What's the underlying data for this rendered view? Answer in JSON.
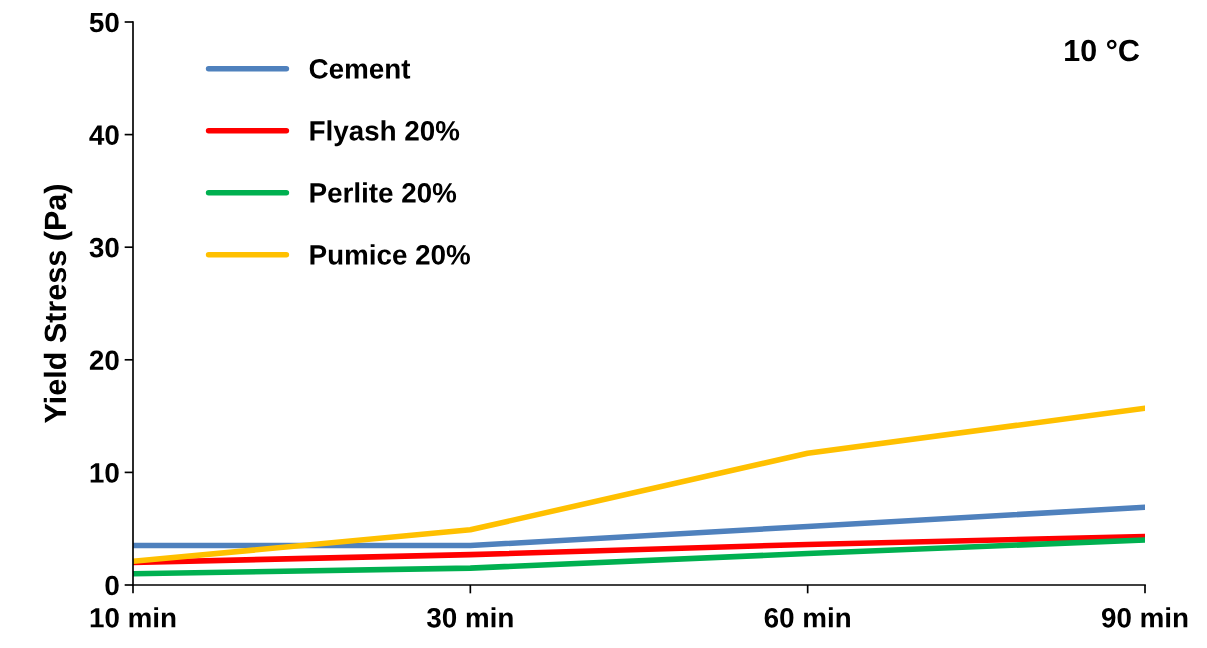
{
  "chart_data": {
    "type": "line",
    "ylabel": "Yield Stress (Pa)",
    "annotations": [
      "10 °C"
    ],
    "categories": [
      "10 min",
      "30 min",
      "60 min",
      "90 min"
    ],
    "series": [
      {
        "name": "Cement",
        "color": "#4f81bd",
        "values": [
          3.5,
          3.5,
          5.2,
          6.9
        ]
      },
      {
        "name": "Flyash 20%",
        "color": "#ff0000",
        "values": [
          2.0,
          2.7,
          3.6,
          4.3
        ]
      },
      {
        "name": "Perlite 20%",
        "color": "#00b050",
        "values": [
          1.0,
          1.5,
          2.8,
          4.0
        ]
      },
      {
        "name": "Pumice 20%",
        "color": "#ffc000",
        "values": [
          2.1,
          4.9,
          11.7,
          15.7
        ]
      }
    ],
    "ylim": [
      0,
      50
    ],
    "yticks": [
      0,
      10,
      20,
      30,
      40,
      50
    ],
    "grid": false,
    "legend": "top left",
    "marker": "none",
    "line_style": "solid"
  }
}
